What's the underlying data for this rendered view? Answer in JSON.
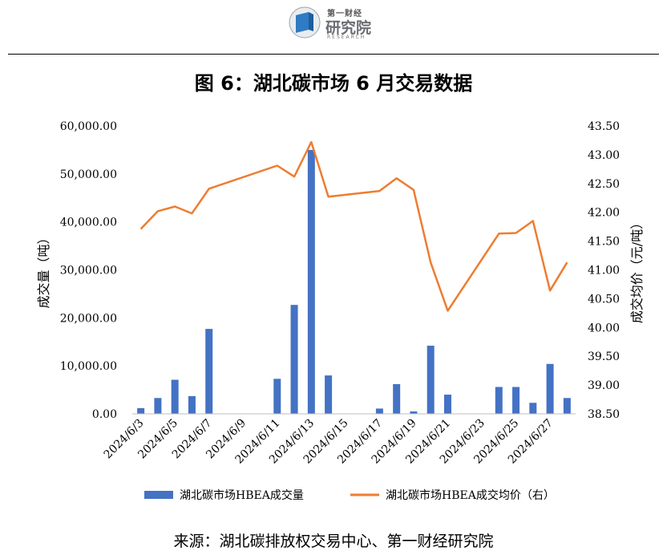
{
  "header": {
    "logo_top": "第一财经",
    "logo_name": "研究院",
    "logo_sub": "RESEARCH"
  },
  "figure_title": "图 6：湖北碳市场 6 月交易数据",
  "source": "来源：湖北碳排放权交易中心、第一财经研究院",
  "colors": {
    "bar": "#4472C4",
    "line": "#ED7D31"
  },
  "chart_data": {
    "type": "bar+line",
    "title": "",
    "ylabel": "成交量（吨）",
    "y2label": "成交均价（元/吨）",
    "ylim": [
      0,
      60000
    ],
    "y2lim": [
      38.5,
      43.5
    ],
    "yticks": [
      "0.00",
      "10,000.00",
      "20,000.00",
      "30,000.00",
      "40,000.00",
      "50,000.00",
      "60,000.00"
    ],
    "y2ticks": [
      "38.50",
      "39.00",
      "39.50",
      "40.00",
      "40.50",
      "41.00",
      "41.50",
      "42.00",
      "42.50",
      "43.00",
      "43.50"
    ],
    "x": [
      "2024/6/3",
      "2024/6/4",
      "2024/6/5",
      "2024/6/6",
      "2024/6/7",
      "2024/6/8",
      "2024/6/9",
      "2024/6/10",
      "2024/6/11",
      "2024/6/12",
      "2024/6/13",
      "2024/6/14",
      "2024/6/15",
      "2024/6/16",
      "2024/6/17",
      "2024/6/18",
      "2024/6/19",
      "2024/6/20",
      "2024/6/21",
      "2024/6/22",
      "2024/6/23",
      "2024/6/24",
      "2024/6/25",
      "2024/6/26",
      "2024/6/27",
      "2024/6/28"
    ],
    "xtick_labels": [
      "2024/6/3",
      "2024/6/5",
      "2024/6/7",
      "2024/6/9",
      "2024/6/11",
      "2024/6/13",
      "2024/6/15",
      "2024/6/17",
      "2024/6/19",
      "2024/6/21",
      "2024/6/23",
      "2024/6/25",
      "2024/6/27"
    ],
    "series": [
      {
        "name": "湖北碳市场HBEA成交量",
        "type": "bar",
        "axis": "left",
        "values": [
          1200,
          3300,
          7100,
          3700,
          17700,
          null,
          null,
          null,
          7300,
          22700,
          55000,
          8000,
          null,
          null,
          1100,
          6200,
          500,
          14200,
          4000,
          null,
          null,
          5600,
          5600,
          2300,
          10400,
          3300
        ]
      },
      {
        "name": "湖北碳市场HBEA成交均价（右）",
        "type": "line",
        "axis": "right",
        "values": [
          41.71,
          42.02,
          42.1,
          41.98,
          42.41,
          null,
          null,
          null,
          42.81,
          42.62,
          43.22,
          42.27,
          null,
          null,
          42.37,
          42.59,
          42.39,
          41.13,
          40.29,
          null,
          null,
          41.63,
          41.64,
          41.85,
          40.64,
          41.13
        ]
      }
    ],
    "legend_position": "bottom",
    "grid": false
  }
}
